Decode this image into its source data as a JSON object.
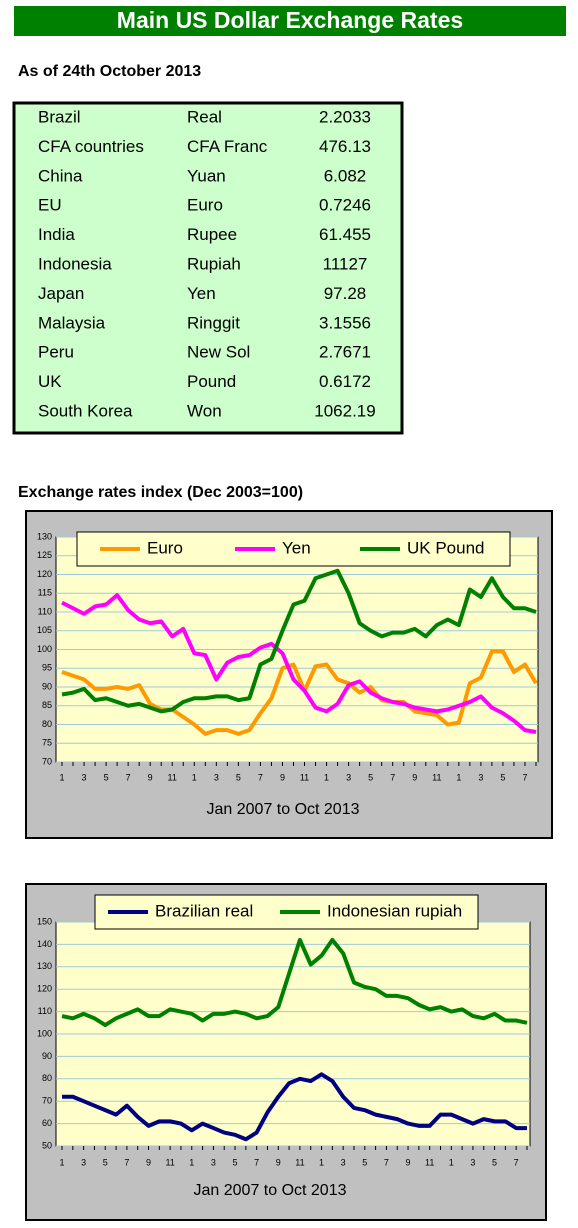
{
  "header": {
    "title": "Main US Dollar Exchange Rates",
    "subtitle": "As of 24th October 2013"
  },
  "table": {
    "rows": [
      [
        "Brazil",
        "Real",
        "2.2033"
      ],
      [
        "CFA countries",
        "CFA Franc",
        "476.13"
      ],
      [
        "China",
        "Yuan",
        "6.082"
      ],
      [
        "EU",
        "Euro",
        "0.7246"
      ],
      [
        "India",
        "Rupee",
        "61.455"
      ],
      [
        "Indonesia",
        "Rupiah",
        "11127"
      ],
      [
        "Japan",
        "Yen",
        "97.28"
      ],
      [
        "Malaysia",
        "Ringgit",
        "3.1556"
      ],
      [
        "Peru",
        "New Sol",
        "2.7671"
      ],
      [
        "UK",
        "Pound",
        "0.6172"
      ],
      [
        "South Korea",
        "Won",
        "1062.19"
      ]
    ]
  },
  "chart_data": [
    {
      "type": "line",
      "title": "Exchange rates index (Dec 2003=100)",
      "xlabel": "Jan 2007 to Oct 2013",
      "categories": [
        "1",
        null,
        "3",
        null,
        "5",
        null,
        "7",
        null,
        "9",
        null,
        "11",
        null,
        "1",
        null,
        "3",
        null,
        "5",
        null,
        "7",
        null,
        "9",
        null,
        "11",
        null,
        "1",
        null,
        "3",
        null,
        "5",
        null,
        "7",
        null,
        "9",
        null,
        "11",
        null,
        "1",
        null,
        "3",
        null,
        "5",
        null,
        "7",
        null
      ],
      "series": [
        {
          "name": "Euro",
          "color": "#ff9900",
          "values": [
            94,
            93,
            92,
            89.5,
            89.5,
            90,
            89.5,
            90.5,
            85.5,
            84,
            84,
            82,
            80,
            77.5,
            78.5,
            78.5,
            77.5,
            78.5,
            83,
            87,
            95,
            96,
            89,
            95.5,
            96,
            92,
            91,
            88.5,
            90,
            86.5,
            86,
            86,
            83.5,
            83,
            82.5,
            80,
            80.5,
            91,
            92.5,
            99.5,
            99.5,
            94,
            96,
            91
          ]
        },
        {
          "name": "Yen",
          "color": "#ff00ff",
          "values": [
            112.5,
            111,
            109.5,
            111.5,
            112,
            114.5,
            110.5,
            108,
            107,
            107.5,
            103.5,
            105.5,
            99,
            98.5,
            92,
            96.5,
            98,
            98.5,
            100.5,
            101.5,
            99,
            92,
            89,
            84.5,
            83.5,
            85.5,
            90.5,
            91.5,
            88.5,
            87,
            86,
            85.5,
            84.5,
            84,
            83.5,
            84,
            85,
            86,
            87.5,
            84.5,
            83,
            81,
            78.5,
            78
          ]
        },
        {
          "name": "UK Pound",
          "color": "#008000",
          "values": [
            88,
            88.5,
            89.5,
            86.5,
            87,
            86,
            85,
            85.5,
            84.5,
            83.5,
            84,
            86,
            87,
            87,
            87.5,
            87.5,
            86.5,
            87,
            96,
            97.5,
            105,
            112,
            113,
            119,
            120,
            121,
            115,
            107,
            105,
            103.5,
            104.5,
            104.5,
            105.5,
            103.5,
            106.5,
            108,
            106.5,
            116,
            114,
            119,
            114,
            111,
            111,
            110
          ]
        }
      ],
      "ylim": [
        70,
        130
      ],
      "yticks": [
        70,
        75,
        80,
        85,
        90,
        95,
        100,
        105,
        110,
        115,
        120,
        125,
        130
      ],
      "grid": true,
      "legend": "inside top"
    },
    {
      "type": "line",
      "xlabel": "Jan 2007 to Oct 2013",
      "categories": [
        "1",
        null,
        "3",
        null,
        "5",
        null,
        "7",
        null,
        "9",
        null,
        "11",
        null,
        "1",
        null,
        "3",
        null,
        "5",
        null,
        "7",
        null,
        "9",
        null,
        "11",
        null,
        "1",
        null,
        "3",
        null,
        "5",
        null,
        "7",
        null,
        "9",
        null,
        "11",
        null,
        "1",
        null,
        "3",
        null,
        "5",
        null,
        "7",
        null
      ],
      "series": [
        {
          "name": "Brazilian real",
          "color": "#000080",
          "values": [
            72,
            72,
            70,
            68,
            66,
            64,
            68,
            63,
            59,
            61,
            61,
            60,
            57,
            60,
            58,
            56,
            55,
            53,
            56,
            65,
            72,
            78,
            80,
            79,
            82,
            79,
            72,
            67,
            66,
            64,
            63,
            62,
            60,
            59,
            59,
            64,
            64,
            62,
            60,
            62,
            61,
            61,
            58,
            58
          ]
        },
        {
          "name": "Indonesian rupiah",
          "color": "#008000",
          "values": [
            108,
            107,
            109,
            107,
            104,
            107,
            109,
            111,
            108,
            108,
            111,
            110,
            109,
            106,
            109,
            109,
            110,
            109,
            107,
            108,
            112,
            127,
            142,
            131,
            135,
            142,
            136,
            123,
            121,
            120,
            117,
            117,
            116,
            113,
            111,
            112,
            110,
            111,
            108,
            107,
            109,
            106,
            106,
            105
          ]
        }
      ],
      "ylim": [
        50,
        150
      ],
      "yticks": [
        50,
        60,
        70,
        80,
        90,
        100,
        110,
        120,
        130,
        140,
        150
      ],
      "grid": true,
      "legend": "top"
    }
  ]
}
